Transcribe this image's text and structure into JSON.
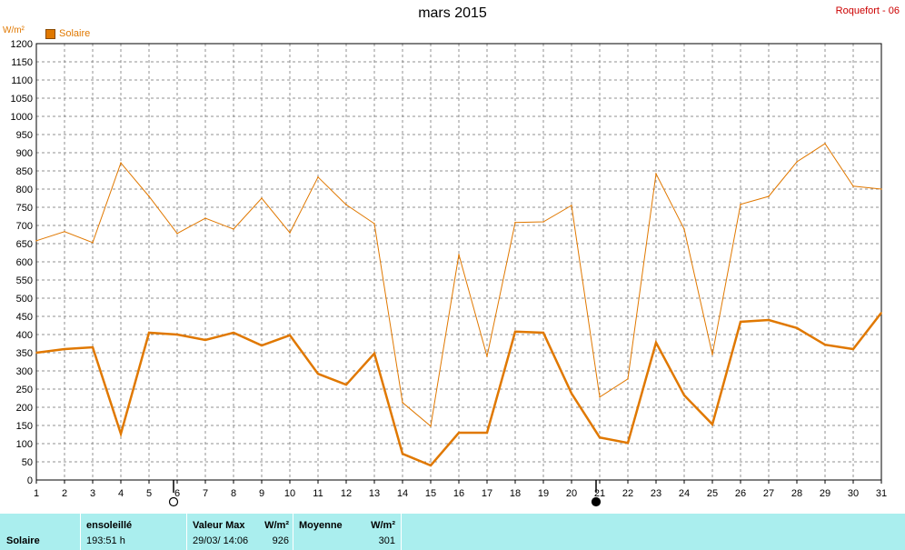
{
  "header": {
    "title": "mars 2015",
    "station": "Roquefort - 06",
    "unit": "W/m²"
  },
  "legend": {
    "label": "Solaire",
    "color": "#e07800"
  },
  "moon_icons": [
    {
      "day": 6,
      "name": "full-moon-icon"
    },
    {
      "day": 21,
      "name": "new-moon-icon"
    }
  ],
  "chart_data": {
    "type": "line",
    "x": [
      1,
      2,
      3,
      4,
      5,
      6,
      7,
      8,
      9,
      10,
      11,
      12,
      13,
      14,
      15,
      16,
      17,
      18,
      19,
      20,
      21,
      22,
      23,
      24,
      25,
      26,
      27,
      28,
      29,
      30,
      31
    ],
    "ylim": [
      0,
      1200
    ],
    "ytick_step": 50,
    "grid": true,
    "series": [
      {
        "name": "max",
        "color": "#e07800",
        "stroke": "thin",
        "values": [
          658,
          683,
          653,
          872,
          780,
          678,
          720,
          690,
          775,
          680,
          833,
          757,
          705,
          213,
          148,
          620,
          340,
          708,
          710,
          755,
          228,
          278,
          842,
          690,
          345,
          758,
          780,
          875,
          925,
          808,
          800
        ]
      },
      {
        "name": "mean",
        "color": "#e07800",
        "stroke": "thick",
        "values": [
          350,
          360,
          365,
          127,
          405,
          400,
          385,
          405,
          370,
          398,
          292,
          262,
          348,
          72,
          40,
          130,
          130,
          408,
          405,
          238,
          117,
          102,
          378,
          233,
          153,
          435,
          440,
          418,
          372,
          360,
          460
        ]
      }
    ]
  },
  "footer": {
    "row_label": "Solaire",
    "sunshine_header": "ensoleillé",
    "sunshine_value": "193:51 h",
    "max_header": "Valeur Max",
    "max_unit": "W/m²",
    "max_date": "29/03/ 14:06",
    "max_value": "926",
    "mean_header": "Moyenne",
    "mean_unit": "W/m²",
    "mean_value": "301"
  }
}
